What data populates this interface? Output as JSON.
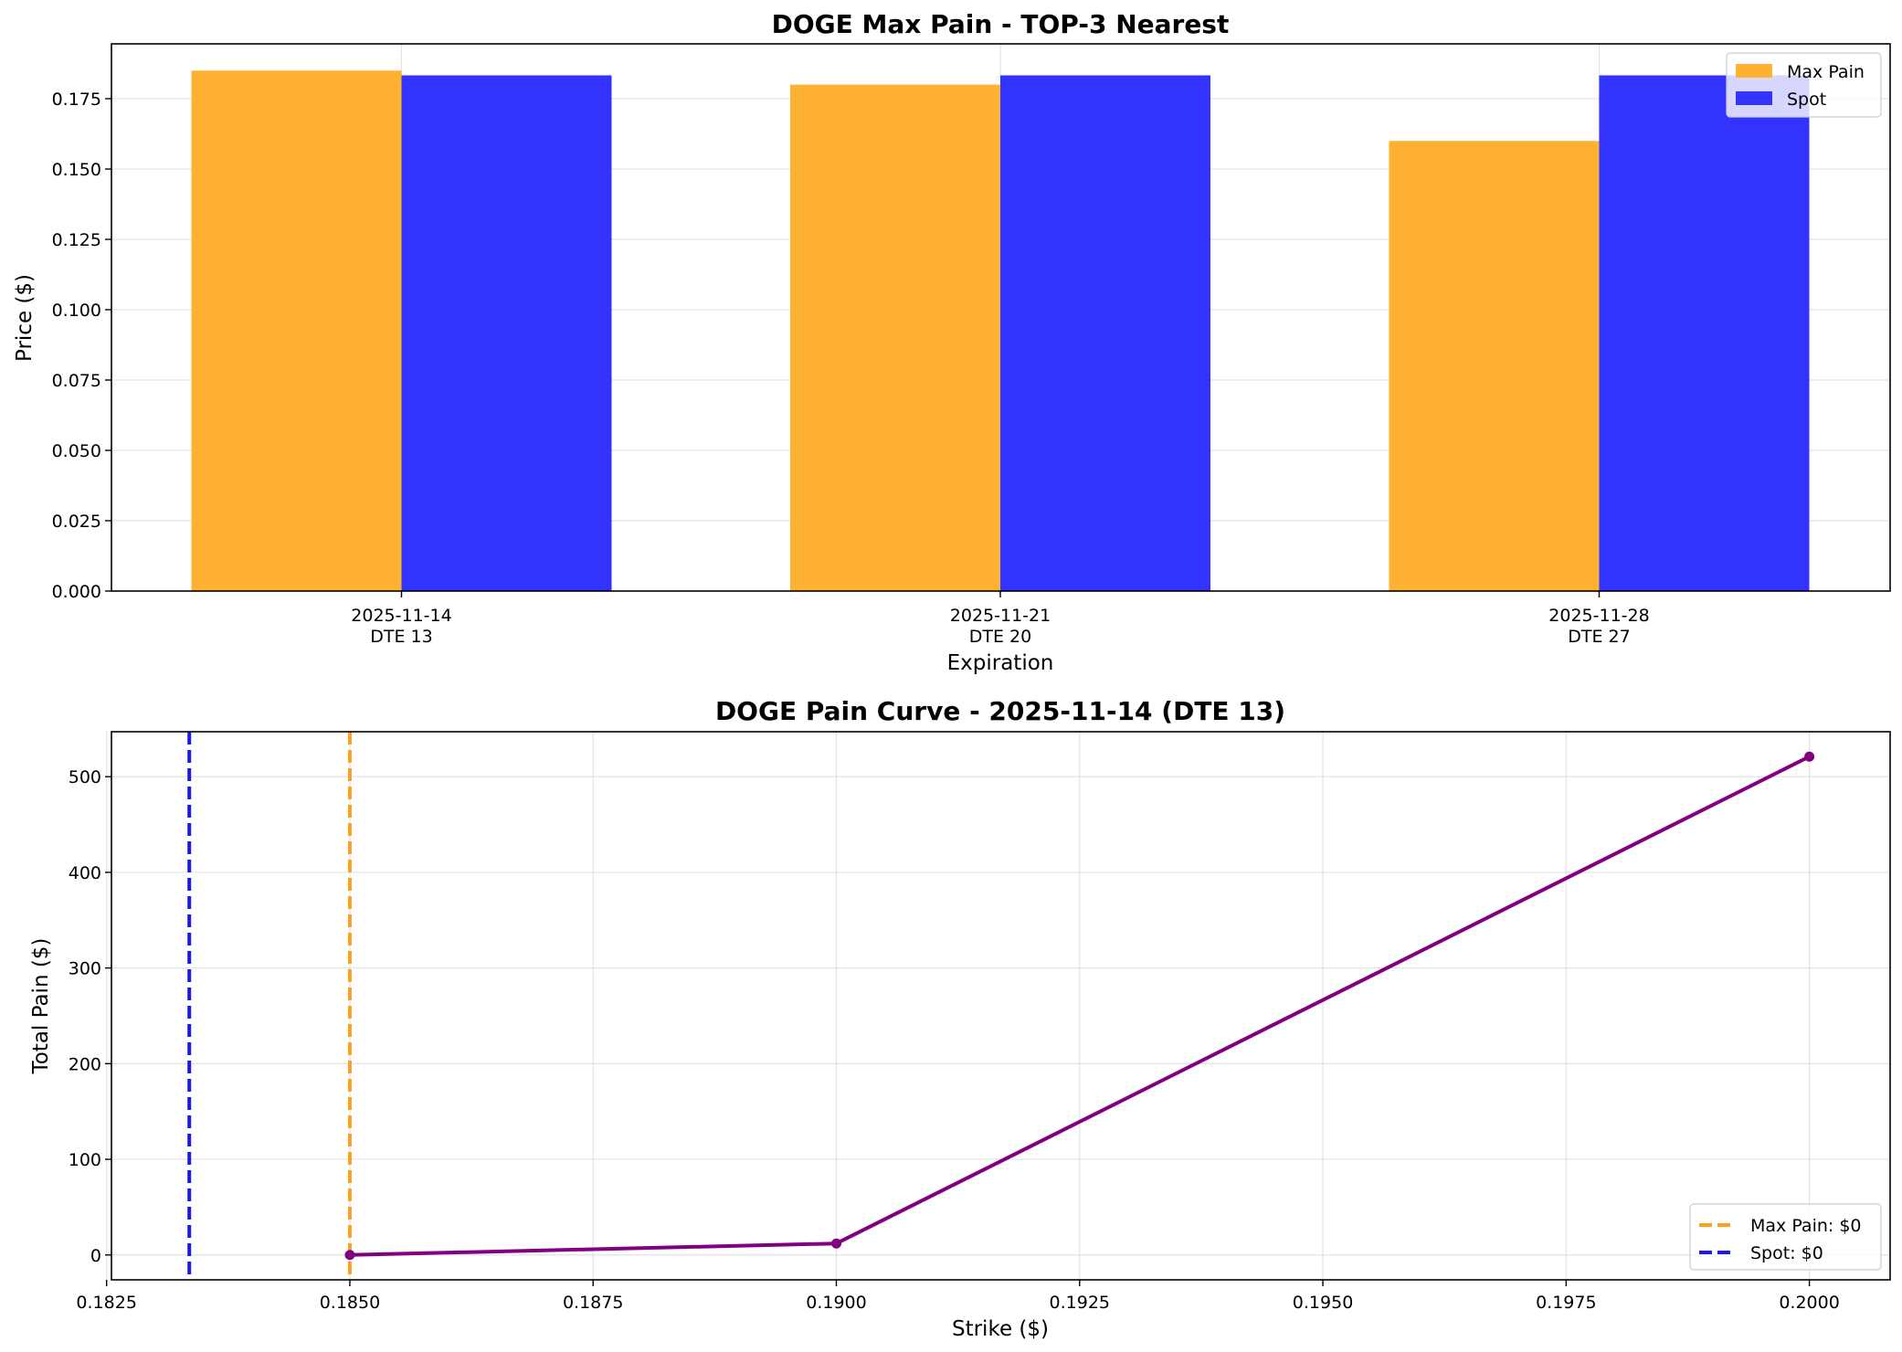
{
  "chart_data": [
    {
      "type": "bar",
      "title": "DOGE Max Pain - TOP-3 Nearest",
      "xlabel": "Expiration",
      "ylabel": "Price ($)",
      "categories": [
        [
          "2025-11-14",
          "DTE 13"
        ],
        [
          "2025-11-21",
          "DTE 20"
        ],
        [
          "2025-11-28",
          "DTE 27"
        ]
      ],
      "series": [
        {
          "name": "Max Pain",
          "values": [
            0.185,
            0.18,
            0.16
          ],
          "color": "#ffb232"
        },
        {
          "name": "Spot",
          "values": [
            0.1833,
            0.1833,
            0.1833
          ],
          "color": "#3333ff"
        }
      ],
      "ylim": [
        0,
        0.1945
      ],
      "yticks": [
        "0.000",
        "0.025",
        "0.050",
        "0.075",
        "0.100",
        "0.125",
        "0.150",
        "0.175"
      ],
      "grid": true,
      "legend": "top-right"
    },
    {
      "type": "line",
      "title": "DOGE Pain Curve - 2025-11-14 (DTE 13)",
      "xlabel": "Strike ($)",
      "ylabel": "Total Pain ($)",
      "x": [
        0.185,
        0.19,
        0.2
      ],
      "series": [
        {
          "values": [
            0,
            12,
            521
          ],
          "color": "#800080"
        }
      ],
      "vlines": [
        {
          "name": "Max Pain: $0",
          "x": 0.185,
          "color": "#ff9f1a"
        },
        {
          "name": "Spot: $0",
          "x": 0.18335,
          "color": "#1a1aee"
        }
      ],
      "xlim": [
        0.18255,
        0.20083
      ],
      "ylim": [
        -26,
        547
      ],
      "xticks": [
        "0.1825",
        "0.1850",
        "0.1875",
        "0.1900",
        "0.1925",
        "0.1950",
        "0.1975",
        "0.2000"
      ],
      "yticks": [
        "0",
        "100",
        "200",
        "300",
        "400",
        "500"
      ],
      "grid": true,
      "legend": "bottom-right"
    }
  ]
}
